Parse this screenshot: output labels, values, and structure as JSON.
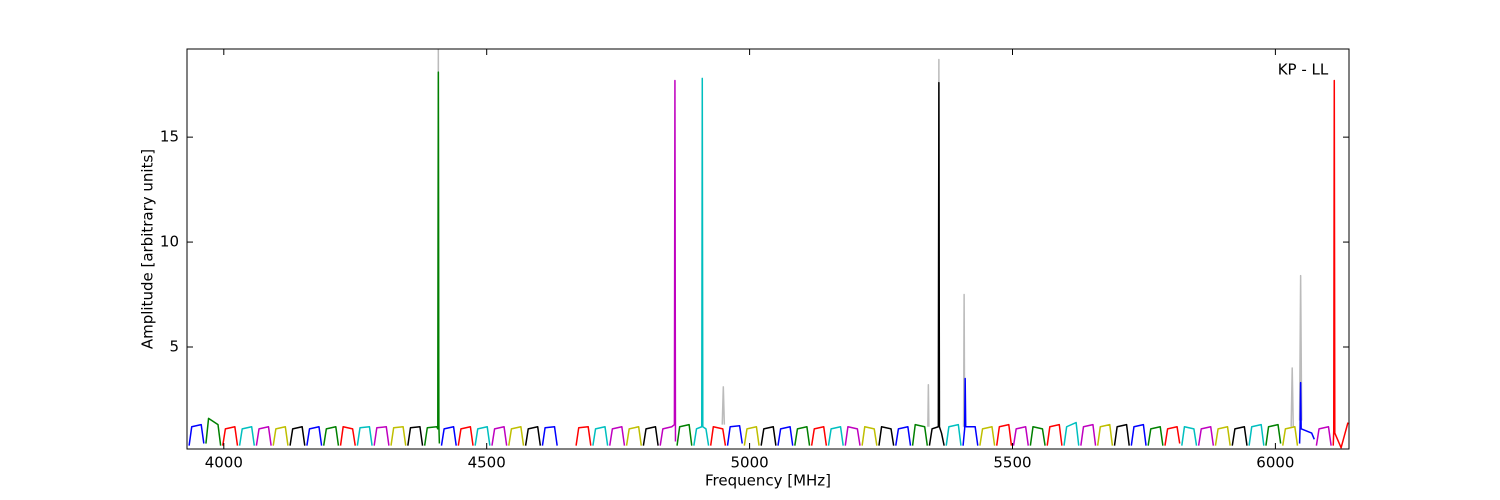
{
  "chart_data": {
    "type": "line",
    "x_label": "Frequency [MHz]",
    "y_label": "Amplitude [arbitrary units]",
    "annotation": "KP - LL",
    "xlim": [
      3930,
      6140
    ],
    "ylim": [
      0.14,
      19.2
    ],
    "xticks": [
      4000,
      4500,
      5000,
      5500,
      6000
    ],
    "yticks": [
      5,
      10,
      15
    ],
    "series": [
      {
        "color": "#bbbbbb",
        "x": [
          4407,
          4408,
          4409,
          null,
          4948,
          4950,
          4952,
          null,
          5339,
          5340,
          5341,
          null,
          5359,
          5360,
          5361,
          null,
          5407,
          5408,
          5409,
          null,
          6030,
          6032,
          6034,
          null,
          6046,
          6048,
          6050
        ],
        "values": [
          1.2,
          19.2,
          1.2,
          null,
          1.3,
          3.1,
          1.3,
          null,
          1.2,
          3.2,
          1.2,
          null,
          1.2,
          18.7,
          1.2,
          null,
          1.2,
          7.5,
          1.2,
          null,
          1.2,
          4,
          1.2,
          null,
          1.5,
          8.4,
          1.5
        ]
      },
      {
        "color": "#0000ff",
        "x": [
          3934,
          3939,
          3957,
          3962,
          null,
          4158,
          4163,
          4181,
          4186,
          null,
          4414,
          4419,
          4437,
          4442,
          null,
          4606,
          4611,
          4629,
          4634,
          null,
          4958,
          4963,
          4981,
          4986,
          null,
          5054,
          5059,
          5077,
          5082,
          null,
          5278,
          5283,
          5301,
          5306,
          null,
          5406,
          5409,
          5410,
          5411,
          5429,
          5434,
          null,
          5726,
          5731,
          5749,
          5754,
          null,
          6046,
          6047,
          6048,
          6049,
          6069,
          6074
        ],
        "values": [
          0.3,
          1.2,
          1.3,
          0.4,
          null,
          0.3,
          1.1,
          1.2,
          0.3,
          null,
          0.3,
          1.1,
          1.2,
          0.3,
          null,
          0.3,
          1.15,
          1.2,
          0.3,
          null,
          0.3,
          1.2,
          1.25,
          0.4,
          null,
          0.3,
          1.1,
          1.2,
          0.3,
          null,
          0.3,
          1.1,
          1.2,
          0.3,
          null,
          0.3,
          1.1,
          3.5,
          1.2,
          1.2,
          0.3,
          null,
          0.3,
          1.2,
          1.3,
          0.3,
          null,
          0.4,
          1.2,
          3.3,
          1.1,
          0.9,
          0.6
        ]
      },
      {
        "color": "#008000",
        "x": [
          3966,
          3971,
          3989,
          3994,
          null,
          4190,
          4195,
          4213,
          4218,
          null,
          4382,
          4387,
          4405,
          4407,
          4408,
          4409,
          4410,
          null,
          4862,
          4867,
          4885,
          4890,
          null,
          5086,
          5091,
          5109,
          5114,
          null,
          5310,
          5315,
          5333,
          5338,
          null,
          5534,
          5539,
          5557,
          5562,
          null,
          5758,
          5763,
          5781,
          5786,
          null,
          5982,
          5987,
          6005,
          6010
        ],
        "values": [
          0.4,
          1.6,
          1.3,
          0.3,
          null,
          0.3,
          1.1,
          1.2,
          0.3,
          null,
          0.3,
          1.15,
          1.2,
          1.1,
          18.1,
          1.3,
          0.4,
          null,
          0.3,
          1.2,
          1.3,
          0.3,
          null,
          0.3,
          1.1,
          1.2,
          0.3,
          null,
          0.3,
          1.3,
          1.2,
          0.3,
          null,
          0.3,
          1.2,
          1.1,
          0.3,
          null,
          0.3,
          1.1,
          1.2,
          0.3,
          null,
          0.3,
          1.2,
          1.3,
          0.4
        ]
      },
      {
        "color": "#ff0000",
        "x": [
          3998,
          4003,
          4021,
          4026,
          null,
          4222,
          4227,
          4245,
          4250,
          null,
          4446,
          4451,
          4469,
          4474,
          null,
          4670,
          4675,
          4693,
          4698,
          null,
          4926,
          4931,
          4949,
          4954,
          null,
          5118,
          5123,
          5141,
          5146,
          null,
          5470,
          5475,
          5493,
          5498,
          null,
          5566,
          5571,
          5589,
          5594,
          null,
          5790,
          5795,
          5813,
          5818,
          null,
          6110,
          6111,
          6112,
          6113,
          6125,
          6138
        ],
        "values": [
          0.3,
          1.1,
          1.2,
          0.3,
          null,
          0.3,
          1.2,
          1.1,
          0.3,
          null,
          0.3,
          1.1,
          1.2,
          0.3,
          null,
          0.3,
          1.15,
          1.2,
          0.3,
          null,
          0.3,
          1.2,
          1.1,
          0.3,
          null,
          0.3,
          1.1,
          1.2,
          0.3,
          null,
          0.3,
          1.2,
          1.3,
          0.3,
          null,
          0.3,
          1.2,
          1.3,
          0.3,
          null,
          0.3,
          1.1,
          1.2,
          0.4,
          null,
          0.3,
          1.0,
          17.7,
          0.9,
          0.2,
          1.4
        ]
      },
      {
        "color": "#00bfbf",
        "x": [
          4030,
          4035,
          4053,
          4058,
          null,
          4254,
          4259,
          4277,
          4282,
          null,
          4478,
          4483,
          4501,
          4506,
          null,
          4702,
          4707,
          4725,
          4730,
          null,
          4894,
          4899,
          4909,
          4910,
          4911,
          4917,
          4922,
          null,
          5150,
          5155,
          5173,
          5178,
          null,
          5374,
          5379,
          5397,
          5402,
          null,
          5598,
          5603,
          5621,
          5626,
          null,
          5822,
          5827,
          5845,
          5850,
          null,
          5950,
          5955,
          5973,
          5978
        ],
        "values": [
          0.3,
          1.1,
          1.2,
          0.3,
          null,
          0.3,
          1.15,
          1.2,
          0.3,
          null,
          0.3,
          1.1,
          1.2,
          0.3,
          null,
          0.3,
          1.1,
          1.2,
          0.3,
          null,
          0.3,
          1.1,
          1.2,
          17.8,
          1.2,
          1.1,
          0.3,
          null,
          0.3,
          1.1,
          1.2,
          0.3,
          null,
          0.3,
          1.2,
          1.3,
          0.3,
          null,
          0.3,
          1.2,
          1.4,
          0.3,
          null,
          0.3,
          1.2,
          1.1,
          0.3,
          null,
          0.3,
          1.2,
          1.3,
          0.3
        ]
      },
      {
        "color": "#bf00bf",
        "x": [
          4062,
          4067,
          4085,
          4090,
          null,
          4286,
          4291,
          4309,
          4314,
          null,
          4510,
          4515,
          4533,
          4538,
          null,
          4734,
          4739,
          4757,
          4762,
          null,
          4830,
          4835,
          4852,
          4857,
          4858,
          4859,
          null,
          5182,
          5187,
          5205,
          5210,
          null,
          5502,
          5507,
          5525,
          5530,
          null,
          5630,
          5635,
          5653,
          5658,
          null,
          5854,
          5859,
          5877,
          5882,
          null,
          6078,
          6083,
          6101,
          6106
        ],
        "values": [
          0.3,
          1.1,
          1.2,
          0.3,
          null,
          0.3,
          1.15,
          1.2,
          0.3,
          null,
          0.3,
          1.1,
          1.2,
          0.3,
          null,
          0.3,
          1.1,
          1.2,
          0.3,
          null,
          0.3,
          1.1,
          1.2,
          1.3,
          17.7,
          0.5,
          null,
          0.3,
          1.2,
          1.1,
          0.3,
          null,
          0.3,
          1.1,
          1.2,
          0.3,
          null,
          0.3,
          1.2,
          1.3,
          0.3,
          null,
          0.3,
          1.1,
          1.2,
          0.3,
          null,
          0.3,
          1.1,
          1.2,
          0.3
        ]
      },
      {
        "color": "#bfbf00",
        "x": [
          4094,
          4099,
          4117,
          4122,
          null,
          4318,
          4323,
          4341,
          4346,
          null,
          4542,
          4547,
          4565,
          4570,
          null,
          4766,
          4771,
          4789,
          4794,
          null,
          4990,
          4995,
          5013,
          5018,
          null,
          5214,
          5219,
          5237,
          5242,
          null,
          5438,
          5443,
          5461,
          5466,
          null,
          5662,
          5667,
          5685,
          5690,
          null,
          5886,
          5891,
          5909,
          5914,
          null,
          6014,
          6019,
          6037,
          6042
        ],
        "values": [
          0.3,
          1.1,
          1.2,
          0.3,
          null,
          0.3,
          1.15,
          1.2,
          0.3,
          null,
          0.3,
          1.1,
          1.2,
          0.3,
          null,
          0.3,
          1.1,
          1.2,
          0.3,
          null,
          0.3,
          1.1,
          1.2,
          0.3,
          null,
          0.3,
          1.2,
          1.1,
          0.3,
          null,
          0.3,
          1.1,
          1.2,
          0.3,
          null,
          0.3,
          1.2,
          1.3,
          0.3,
          null,
          0.3,
          1.1,
          1.2,
          0.3,
          null,
          0.3,
          1.1,
          1.2,
          0.3
        ]
      },
      {
        "color": "#000000",
        "x": [
          4126,
          4131,
          4149,
          4154,
          null,
          4350,
          4355,
          4373,
          4378,
          null,
          4574,
          4579,
          4597,
          4602,
          null,
          4798,
          4803,
          4821,
          4826,
          null,
          5022,
          5027,
          5045,
          5050,
          null,
          5246,
          5251,
          5269,
          5274,
          null,
          5342,
          5347,
          5359,
          5360,
          5361,
          5365,
          5370,
          null,
          5694,
          5699,
          5717,
          5722,
          null,
          5918,
          5923,
          5941,
          5946
        ],
        "values": [
          0.3,
          1.1,
          1.2,
          0.3,
          null,
          0.3,
          1.15,
          1.2,
          0.3,
          null,
          0.3,
          1.1,
          1.2,
          0.3,
          null,
          0.3,
          1.1,
          1.2,
          0.3,
          null,
          0.3,
          1.1,
          1.2,
          0.3,
          null,
          0.3,
          1.2,
          1.1,
          0.3,
          null,
          0.3,
          1.1,
          1.2,
          17.6,
          1.2,
          0.9,
          0.3,
          null,
          0.3,
          1.2,
          1.3,
          0.3,
          null,
          0.3,
          1.1,
          1.2,
          0.3
        ]
      }
    ]
  }
}
